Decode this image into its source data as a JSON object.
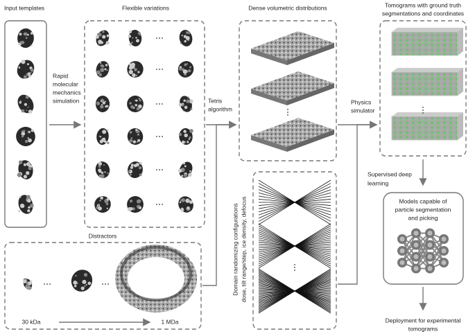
{
  "headers": {
    "input_templates": "Input templates",
    "flexible_variations": "Flexible variations",
    "dense_distributions": "Dense volumetric distributions",
    "tomograms": [
      "Tomograms with ground truth",
      "segmentations and coordinates"
    ]
  },
  "steps": {
    "molecular_mechanics": [
      "Rapid",
      "molecular",
      "mechanics",
      "simulation"
    ],
    "tetris": [
      "Tetris",
      "algorithm"
    ],
    "physics": [
      "Physics",
      "simulator"
    ],
    "supervised": [
      "Supervised deep",
      "learning"
    ]
  },
  "distractors": {
    "title": "Distractors",
    "min_label": "30 kDa",
    "max_label": "1 MDa"
  },
  "domain_randomization": [
    "Domain randomizing configurations",
    "dose, tilt range/step, ice density, defocus"
  ],
  "model": [
    "Models capable of",
    "particle segmentation",
    "and picking"
  ],
  "deployment": [
    "Deployment for experimental",
    "tomograms"
  ]
}
